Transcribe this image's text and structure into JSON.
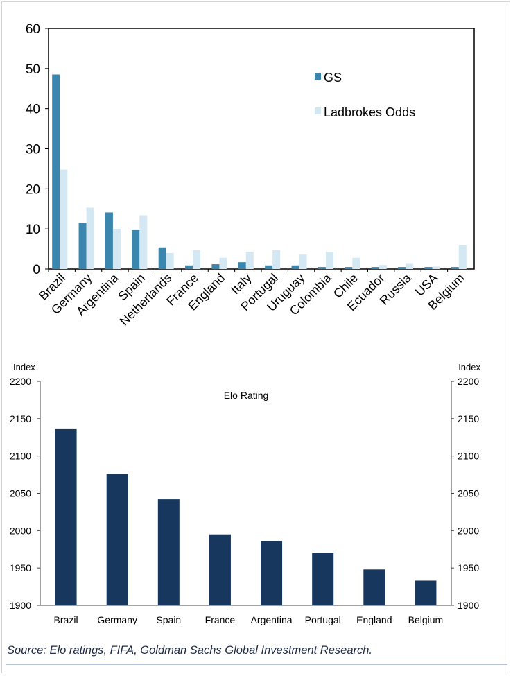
{
  "chart_data": [
    {
      "type": "bar",
      "title": "",
      "xlabel": "",
      "ylabel": "",
      "ylim": [
        0,
        60
      ],
      "yticks": [
        "0",
        "10",
        "20",
        "30",
        "40",
        "50",
        "60"
      ],
      "categories": [
        "Brazil",
        "Germany",
        "Argentina",
        "Spain",
        "Netherlands",
        "France",
        "England",
        "Italy",
        "Portugal",
        "Uruguay",
        "Colombia",
        "Chile",
        "Ecuador",
        "Russia",
        "USA",
        "Belgium"
      ],
      "series": [
        {
          "name": "GS",
          "color": "#3a86ae",
          "values": [
            48.5,
            11.5,
            14.1,
            9.7,
            5.4,
            0.9,
            1.2,
            1.7,
            0.9,
            0.9,
            0.5,
            0.5,
            0.5,
            0.5,
            0.5,
            0.5
          ]
        },
        {
          "name": "Ladbrokes Odds",
          "color": "#d3e8f2",
          "values": [
            24.8,
            15.3,
            10.0,
            13.4,
            4.0,
            4.7,
            2.8,
            4.3,
            4.7,
            3.6,
            4.3,
            2.8,
            1.0,
            1.3,
            0.6,
            5.9
          ]
        }
      ],
      "legend_position": "top-right"
    },
    {
      "type": "bar",
      "title": "Elo Rating",
      "left_axis_label": "Index",
      "right_axis_label": "Index",
      "ylim": [
        1900,
        2200
      ],
      "yticks": [
        "1900",
        "1950",
        "2000",
        "2050",
        "2100",
        "2150",
        "2200"
      ],
      "categories": [
        "Brazil",
        "Germany",
        "Spain",
        "France",
        "Argentina",
        "Portugal",
        "England",
        "Belgium"
      ],
      "values": [
        2136,
        2076,
        2042,
        1995,
        1986,
        1970,
        1948,
        1933
      ],
      "color": "#17375e"
    }
  ],
  "source": "Source:  Elo ratings, FIFA, Goldman Sachs Global Investment Research."
}
